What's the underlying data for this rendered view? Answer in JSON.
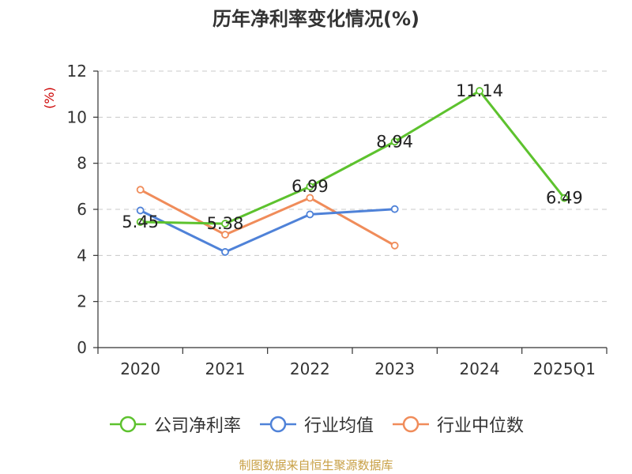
{
  "title": "历年净利率变化情况(%)",
  "source": "制图数据来自恒生聚源数据库",
  "chart_data": {
    "type": "line",
    "title": "历年净利率变化情况(%)",
    "ylabel": "(%)",
    "xlabel": "",
    "categories": [
      "2020",
      "2021",
      "2022",
      "2023",
      "2024",
      "2025Q1"
    ],
    "ylim": [
      0,
      12
    ],
    "yticks": [
      0,
      2,
      4,
      6,
      8,
      10,
      12
    ],
    "grid": true,
    "legend_position": "bottom",
    "series": [
      {
        "name": "公司净利率",
        "color": "#5dc22e",
        "values": [
          5.45,
          5.38,
          6.99,
          8.94,
          11.14,
          6.49
        ],
        "labels": [
          "5.45",
          "5.38",
          "6.99",
          "8.94",
          "11.14",
          "6.49"
        ]
      },
      {
        "name": "行业均值",
        "color": "#4f82d8",
        "values": [
          5.95,
          4.15,
          5.78,
          6.01,
          null,
          null
        ]
      },
      {
        "name": "行业中位数",
        "color": "#f08c5a",
        "values": [
          6.85,
          4.9,
          6.5,
          4.43,
          null,
          null
        ]
      }
    ]
  },
  "colors": {
    "ylabel": "#cc0000",
    "source": "#c8a045",
    "grid": "#c8c8c8",
    "axis": "#333333"
  },
  "legend": [
    {
      "label": "公司净利率",
      "color": "#5dc22e",
      "icon": "circle-line-icon"
    },
    {
      "label": "行业均值",
      "color": "#4f82d8",
      "icon": "circle-line-icon"
    },
    {
      "label": "行业中位数",
      "color": "#f08c5a",
      "icon": "circle-line-icon"
    }
  ]
}
